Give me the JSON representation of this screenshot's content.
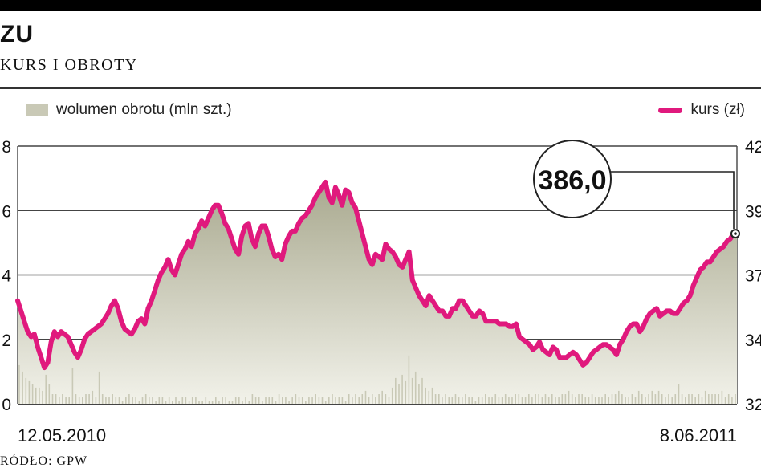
{
  "header": {
    "title": "ZU",
    "subtitle": "KURS I OBROTY"
  },
  "legend": {
    "volume_label": "wolumen obrotu (mln szt.)",
    "price_label": "kurs (zł)"
  },
  "source": "RÓDŁO: GPW",
  "colors": {
    "price": "#e0197d",
    "volume": "#c9c9b6",
    "area_top": "#a9a98f",
    "area_bottom": "#f2f2ea",
    "grid": "#444444"
  },
  "callout": {
    "text": "386,0"
  },
  "chart_data": {
    "type": "line",
    "x_start_label": "12.05.2010",
    "x_end_label": "8.06.2011",
    "left_axis": {
      "name": "wolumen obrotu (mln szt.)",
      "ticks": [
        "0",
        "2",
        "4",
        "6",
        "8"
      ],
      "range": [
        0,
        8
      ]
    },
    "right_axis": {
      "name": "kurs (zł)",
      "ticks": [
        "32",
        "34",
        "37",
        "39",
        "42"
      ],
      "range": [
        320,
        420
      ]
    },
    "grid": true,
    "legend_placement": "top",
    "series": [
      {
        "name": "kurs (zł)",
        "axis": "right",
        "values": [
          360,
          356,
          352,
          348,
          346,
          347,
          342,
          338,
          334,
          336,
          344,
          348,
          346,
          348,
          347,
          346,
          343,
          340,
          338,
          341,
          345,
          347,
          348,
          349,
          350,
          351,
          353,
          355,
          358,
          360,
          357,
          352,
          349,
          348,
          347,
          349,
          352,
          353,
          351,
          357,
          360,
          364,
          368,
          371,
          373,
          376,
          372,
          370,
          374,
          378,
          380,
          383,
          381,
          386,
          388,
          391,
          389,
          392,
          395,
          397,
          397,
          394,
          390,
          388,
          384,
          380,
          378,
          385,
          389,
          390,
          384,
          381,
          386,
          389,
          389,
          385,
          380,
          377,
          378,
          376,
          382,
          385,
          387,
          387,
          390,
          392,
          393,
          395,
          397,
          400,
          402,
          404,
          406,
          400,
          398,
          404,
          401,
          397,
          403,
          402,
          398,
          396,
          391,
          386,
          381,
          376,
          374,
          378,
          377,
          376,
          382,
          380,
          379,
          377,
          374,
          373,
          376,
          379,
          368,
          365,
          362,
          360,
          358,
          362,
          360,
          358,
          356,
          356,
          354,
          354,
          357,
          357,
          360,
          360,
          358,
          356,
          354,
          354,
          356,
          355,
          352,
          352,
          352,
          352,
          351,
          351,
          351,
          350,
          350,
          351,
          346,
          345,
          344,
          343,
          341,
          342,
          344,
          341,
          340,
          339,
          342,
          341,
          338,
          338,
          338,
          339,
          340,
          339,
          337,
          335,
          336,
          338,
          340,
          341,
          342,
          343,
          343,
          342,
          341,
          339,
          343,
          345,
          348,
          350,
          351,
          351,
          348,
          350,
          353,
          355,
          356,
          357,
          354,
          355,
          356,
          356,
          355,
          355,
          357,
          359,
          360,
          362,
          366,
          369,
          372,
          373,
          375,
          375,
          377,
          379,
          380,
          381,
          383,
          384,
          386,
          386
        ]
      },
      {
        "name": "wolumen obrotu (mln szt.)",
        "axis": "left",
        "values": [
          1.2,
          1.0,
          0.8,
          0.7,
          0.6,
          0.5,
          0.5,
          0.4,
          0.9,
          0.6,
          0.3,
          0.3,
          0.2,
          0.3,
          0.2,
          0.2,
          1.1,
          0.3,
          0.2,
          0.2,
          0.3,
          0.3,
          0.4,
          0.2,
          1.0,
          0.3,
          0.2,
          0.2,
          0.3,
          0.2,
          0.2,
          0.1,
          0.2,
          0.3,
          0.2,
          0.2,
          0.1,
          0.2,
          0.3,
          0.2,
          0.2,
          0.1,
          0.2,
          0.2,
          0.1,
          0.2,
          0.1,
          0.2,
          0.1,
          0.2,
          0.2,
          0.1,
          0.2,
          0.2,
          0.1,
          0.1,
          0.2,
          0.1,
          0.1,
          0.2,
          0.1,
          0.2,
          0.2,
          0.1,
          0.1,
          0.2,
          0.2,
          0.1,
          0.2,
          0.1,
          0.3,
          0.2,
          0.2,
          0.1,
          0.2,
          0.2,
          0.2,
          0.1,
          0.3,
          0.2,
          0.2,
          0.1,
          0.2,
          0.3,
          0.2,
          0.2,
          0.1,
          0.2,
          0.2,
          0.3,
          0.2,
          0.2,
          0.1,
          0.2,
          0.3,
          0.2,
          0.2,
          0.2,
          0.1,
          0.3,
          0.2,
          0.3,
          0.2,
          0.3,
          0.4,
          0.2,
          0.3,
          0.2,
          0.3,
          0.4,
          0.3,
          0.2,
          0.5,
          0.8,
          0.6,
          0.9,
          0.7,
          1.5,
          0.8,
          1.0,
          0.6,
          0.8,
          0.5,
          0.4,
          0.5,
          0.3,
          0.3,
          0.2,
          0.3,
          0.2,
          0.2,
          0.3,
          0.2,
          0.2,
          0.3,
          0.2,
          0.2,
          0.1,
          0.2,
          0.2,
          0.3,
          0.2,
          0.2,
          0.3,
          0.2,
          0.2,
          0.3,
          0.2,
          0.2,
          0.3,
          0.3,
          0.2,
          0.2,
          0.3,
          0.2,
          0.3,
          0.3,
          0.2,
          0.3,
          0.2,
          0.3,
          0.2,
          0.2,
          0.3,
          0.3,
          0.4,
          0.3,
          0.2,
          0.3,
          0.3,
          0.2,
          0.2,
          0.3,
          0.2,
          0.2,
          0.2,
          0.3,
          0.2,
          0.3,
          0.3,
          0.4,
          0.3,
          0.2,
          0.2,
          0.3,
          0.2,
          0.4,
          0.3,
          0.2,
          0.3,
          0.4,
          0.3,
          0.4,
          0.3,
          0.2,
          0.3,
          0.2,
          0.3,
          0.6,
          0.3,
          0.2,
          0.3,
          0.3,
          0.2,
          0.3,
          0.2,
          0.4,
          0.3,
          0.3,
          0.3,
          0.3,
          0.4,
          0.2,
          0.3,
          0.2,
          0.3
        ]
      }
    ]
  }
}
